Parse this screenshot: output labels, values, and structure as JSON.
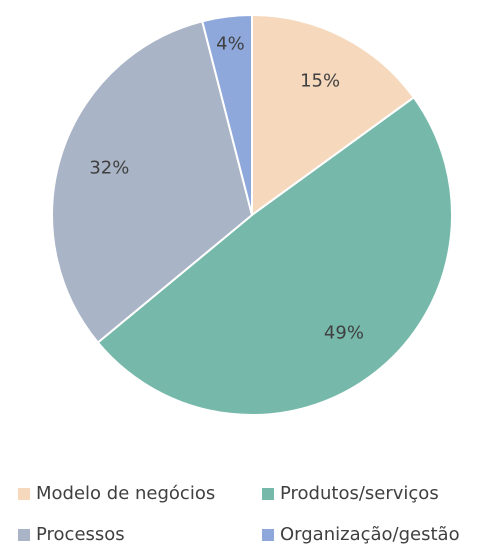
{
  "chart_data": {
    "type": "pie",
    "categories": [
      "Modelo de negócios",
      "Produtos/serviços",
      "Processos",
      "Organização/gestão"
    ],
    "values": [
      15,
      49,
      32,
      4
    ],
    "value_labels": [
      "15%",
      "49%",
      "32%",
      "4%"
    ],
    "colors": [
      "#f6d9bd",
      "#76b9ab",
      "#aab4c7",
      "#8fa8dc"
    ],
    "legend": "bottom"
  }
}
